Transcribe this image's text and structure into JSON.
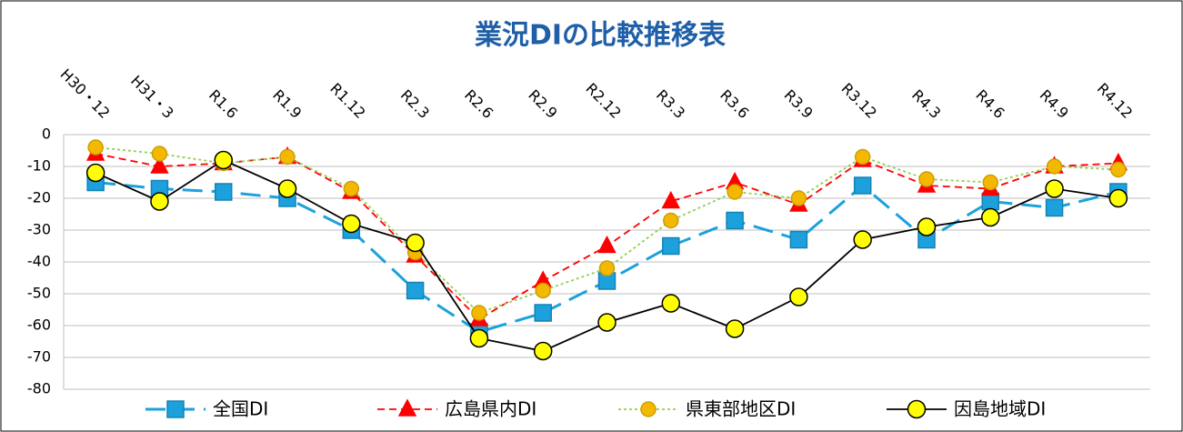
{
  "chart_data": {
    "type": "line",
    "title": "業況DIの比較推移表",
    "categories": [
      "H30・12",
      "H31・3",
      "R1.6",
      "R1.9",
      "R1.12",
      "R2.3",
      "R2.6",
      "R2.9",
      "R2.12",
      "R3.3",
      "R3.6",
      "R3.9",
      "R3.12",
      "R4.3",
      "R4.6",
      "R4.9",
      "R4.12"
    ],
    "series": [
      {
        "name": "全国DI",
        "color": "#1da1dc",
        "dash": "long",
        "marker": "square",
        "marker_fill": "#1da1dc",
        "values": [
          -15,
          -17,
          -18,
          -20,
          -30,
          -49,
          -62,
          -56,
          -46,
          -35,
          -27,
          -33,
          -16,
          -33,
          -21,
          -23,
          -18
        ]
      },
      {
        "name": "広島県内DI",
        "color": "#ff0000",
        "dash": "short",
        "marker": "triangle",
        "marker_fill": "#ff0000",
        "values": [
          -6,
          -10,
          -9,
          -7,
          -18,
          -38,
          -58,
          -46,
          -35,
          -21,
          -15,
          -22,
          -8,
          -16,
          -17,
          -10,
          -9
        ]
      },
      {
        "name": "県東部地区DI",
        "color": "#92d050",
        "dash": "dot",
        "marker": "circle",
        "marker_fill": "#f5b800",
        "values": [
          -4,
          -6,
          -9,
          -7,
          -17,
          -37,
          -56,
          -49,
          -42,
          -27,
          -18,
          -20,
          -7,
          -14,
          -15,
          -10,
          -11
        ]
      },
      {
        "name": "因島地域DI",
        "color": "#000000",
        "dash": "solid",
        "marker": "circle",
        "marker_fill": "#ffff00",
        "values": [
          -12,
          -21,
          -8,
          -17,
          -28,
          -34,
          -64,
          -68,
          -59,
          -53,
          -61,
          -51,
          -33,
          -29,
          -26,
          -17,
          -20
        ]
      }
    ],
    "ylim": [
      -80,
      0
    ],
    "yticks": [
      0,
      -10,
      -20,
      -30,
      -40,
      -50,
      -60,
      -70,
      -80
    ],
    "grid": true,
    "legend": "bottom"
  }
}
